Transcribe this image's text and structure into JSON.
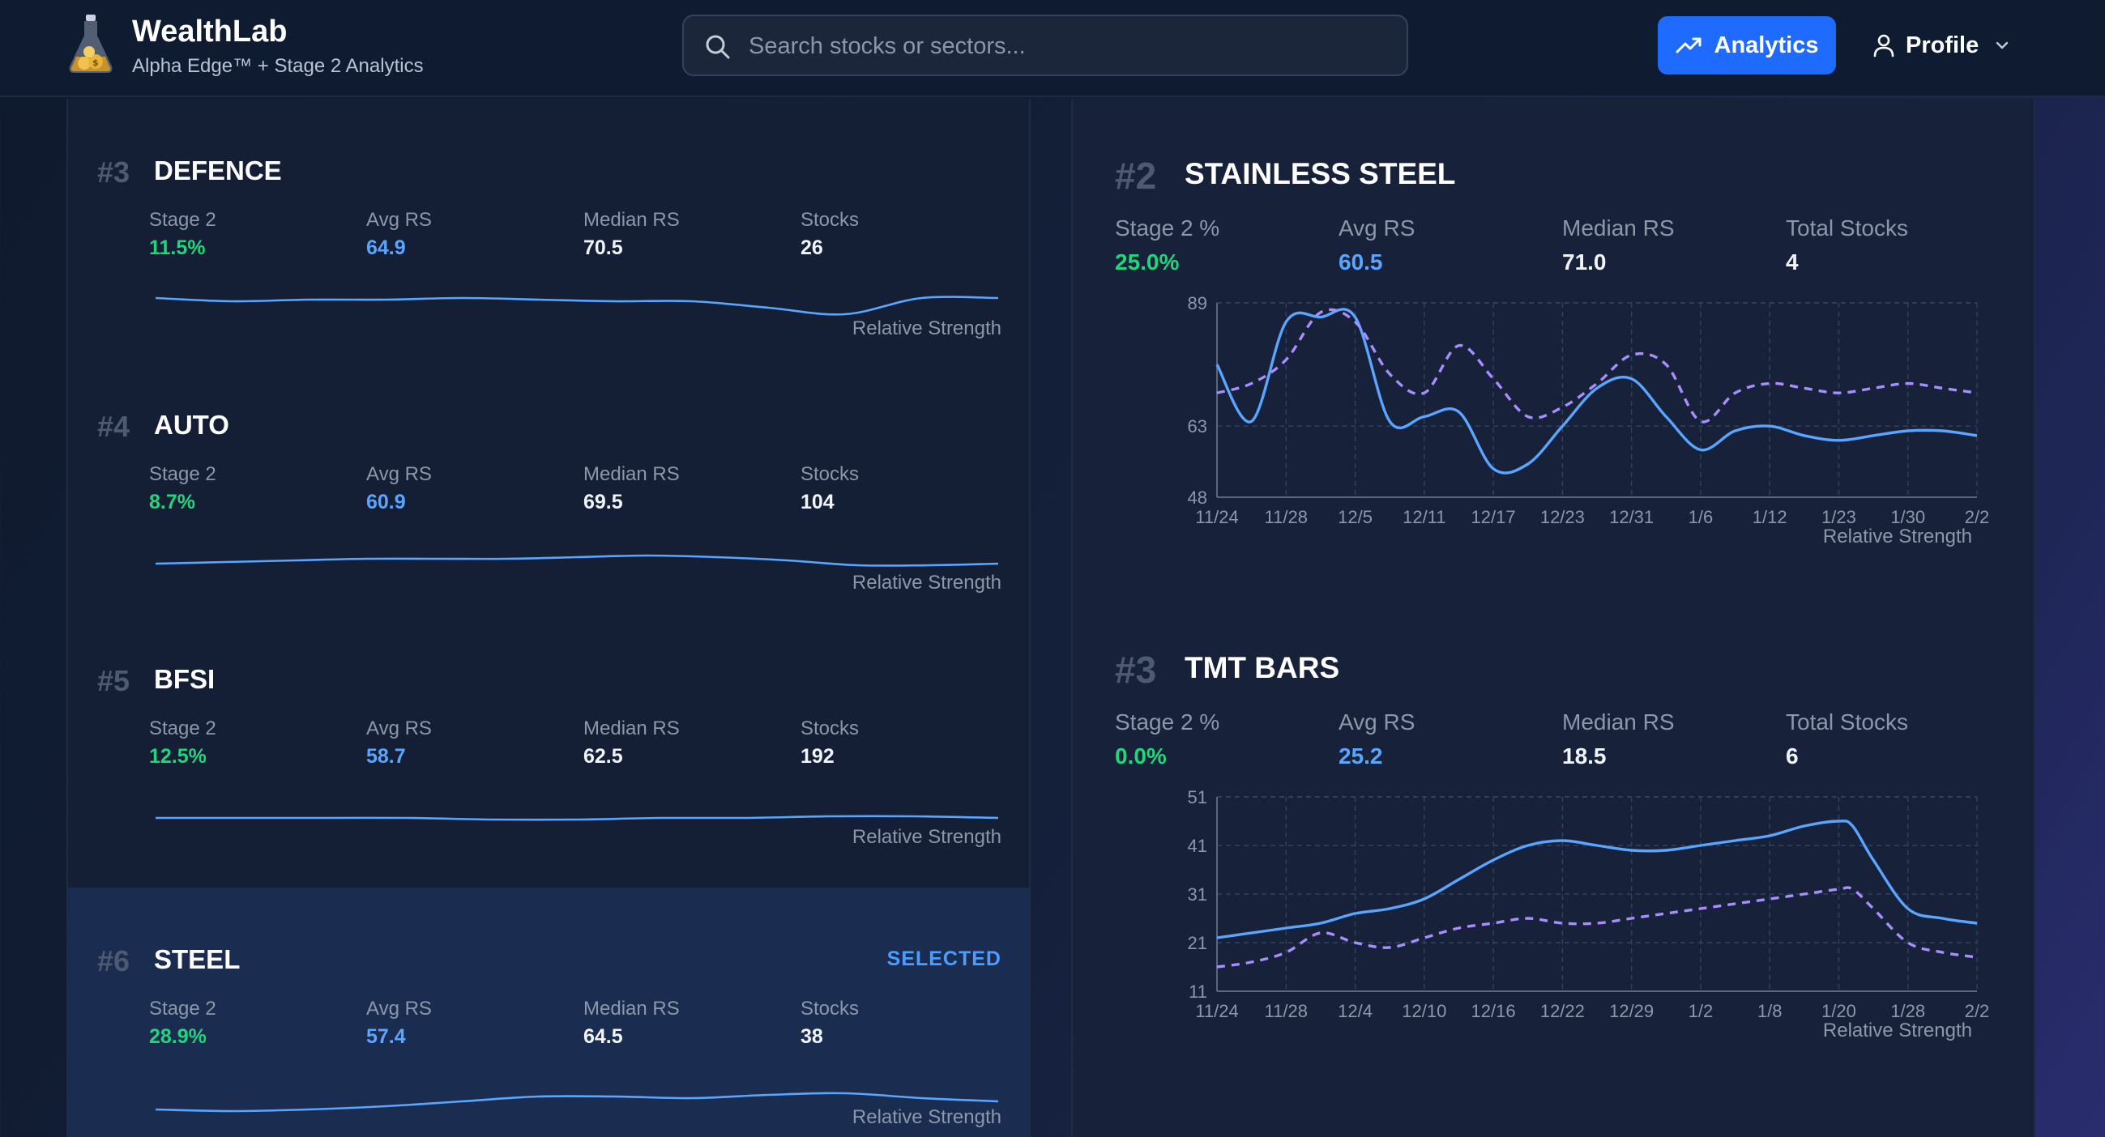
{
  "header": {
    "brand_title": "WealthLab",
    "brand_subtitle": "Alpha Edge™ + Stage 2 Analytics",
    "search_placeholder": "Search stocks or sectors...",
    "analytics_label": "Analytics",
    "profile_label": "Profile",
    "colors": {
      "accent": "#1f6bff",
      "header_bg": "#0f1b31"
    }
  },
  "sectors": [
    {
      "rank": "#3",
      "name": "DEFENCE",
      "stage2_label": "Stage 2",
      "stage2": "11.5%",
      "avg_rs_label": "Avg RS",
      "avg_rs": "64.9",
      "median_rs_label": "Median RS",
      "median_rs": "70.5",
      "stocks_label": "Stocks",
      "stocks": "26",
      "rs_label": "Relative Strength",
      "selected": false,
      "spark": [
        66,
        64,
        65,
        65,
        66,
        65,
        64,
        64,
        60,
        56,
        66,
        66
      ]
    },
    {
      "rank": "#4",
      "name": "AUTO",
      "stage2_label": "Stage 2",
      "stage2": "8.7%",
      "avg_rs_label": "Avg RS",
      "avg_rs": "60.9",
      "median_rs_label": "Median RS",
      "median_rs": "69.5",
      "stocks_label": "Stocks",
      "stocks": "104",
      "rs_label": "Relative Strength",
      "selected": false,
      "spark": [
        59,
        60,
        61,
        62,
        62,
        62,
        63,
        64,
        63,
        61,
        58,
        58,
        59
      ]
    },
    {
      "rank": "#5",
      "name": "BFSI",
      "stage2_label": "Stage 2",
      "stage2": "12.5%",
      "avg_rs_label": "Avg RS",
      "avg_rs": "58.7",
      "median_rs_label": "Median RS",
      "median_rs": "62.5",
      "stocks_label": "Stocks",
      "stocks": "192",
      "rs_label": "Relative Strength",
      "selected": false,
      "spark": [
        59,
        59,
        59,
        59,
        58,
        58,
        59,
        59,
        60,
        60,
        59
      ]
    },
    {
      "rank": "#6",
      "name": "STEEL",
      "stage2_label": "Stage 2",
      "stage2": "28.9%",
      "avg_rs_label": "Avg RS",
      "avg_rs": "57.4",
      "median_rs_label": "Median RS",
      "median_rs": "64.5",
      "stocks_label": "Stocks",
      "stocks": "38",
      "rs_label": "Relative Strength",
      "selected": true,
      "selected_label": "SELECTED",
      "spark": [
        52,
        51,
        52,
        54,
        57,
        60,
        60,
        59,
        61,
        62,
        59,
        57
      ]
    }
  ],
  "charts": [
    {
      "rank": "#2",
      "name": "STAINLESS STEEL",
      "stage2_label": "Stage 2 %",
      "stage2": "25.0%",
      "avg_rs_label": "Avg RS",
      "avg_rs": "60.5",
      "median_rs_label": "Median RS",
      "median_rs": "71.0",
      "total_label": "Total Stocks",
      "total": "4",
      "rs_label": "Relative Strength"
    },
    {
      "rank": "#3",
      "name": "TMT BARS",
      "stage2_label": "Stage 2 %",
      "stage2": "0.0%",
      "avg_rs_label": "Avg RS",
      "avg_rs": "25.2",
      "median_rs_label": "Median RS",
      "median_rs": "18.5",
      "total_label": "Total Stocks",
      "total": "6",
      "rs_label": "Relative Strength"
    }
  ],
  "chart_data": [
    {
      "type": "line",
      "title": "",
      "xlabel": "Relative Strength",
      "ylabel": "",
      "categories": [
        "11/24",
        "11/28",
        "12/5",
        "12/11",
        "12/17",
        "12/23",
        "12/31",
        "1/6",
        "1/12",
        "1/23",
        "1/30",
        "2/2"
      ],
      "yticks": [
        48,
        63,
        89
      ],
      "ylim": [
        48,
        89
      ],
      "grid": true,
      "x": [
        0,
        0.5,
        1,
        1.5,
        2,
        2.5,
        3,
        3.5,
        4,
        4.5,
        5,
        5.5,
        6,
        6.5,
        7,
        7.5,
        8,
        8.5,
        9,
        9.5,
        10,
        10.5,
        11
      ],
      "series": [
        {
          "style": "solid",
          "color": "#5aa5ff",
          "values": [
            76,
            64,
            85,
            86,
            86,
            64,
            65,
            66,
            54,
            55,
            63,
            71,
            73,
            65,
            58,
            62,
            63,
            61,
            60,
            61,
            62,
            62,
            61
          ]
        },
        {
          "style": "dashed",
          "color": "#a98cff",
          "values": [
            70,
            72,
            77,
            87,
            85,
            74,
            70,
            80,
            73,
            65,
            67,
            72,
            78,
            76,
            64,
            70,
            72,
            71,
            70,
            71,
            72,
            71,
            70
          ]
        }
      ]
    },
    {
      "type": "line",
      "title": "",
      "xlabel": "Relative Strength",
      "ylabel": "",
      "categories": [
        "11/24",
        "11/28",
        "12/4",
        "12/10",
        "12/16",
        "12/22",
        "12/29",
        "1/2",
        "1/8",
        "1/20",
        "1/28",
        "2/2"
      ],
      "yticks": [
        11,
        21,
        31,
        41,
        51
      ],
      "ylim": [
        11,
        51
      ],
      "grid": true,
      "x": [
        0,
        0.5,
        1,
        1.5,
        2,
        2.5,
        3,
        3.5,
        4,
        4.5,
        5,
        5.5,
        6,
        6.5,
        7,
        7.5,
        8,
        8.5,
        9,
        9.2,
        9.5,
        10,
        10.5,
        11
      ],
      "series": [
        {
          "style": "solid",
          "color": "#5aa5ff",
          "values": [
            22,
            23,
            24,
            25,
            27,
            28,
            30,
            34,
            38,
            41,
            42,
            41,
            40,
            40,
            41,
            42,
            43,
            45,
            46,
            45,
            38,
            28,
            26,
            25
          ]
        },
        {
          "style": "dashed",
          "color": "#a98cff",
          "values": [
            16,
            17,
            19,
            23,
            21,
            20,
            22,
            24,
            25,
            26,
            25,
            25,
            26,
            27,
            28,
            29,
            30,
            31,
            32,
            32,
            28,
            21,
            19,
            18
          ]
        }
      ]
    }
  ]
}
